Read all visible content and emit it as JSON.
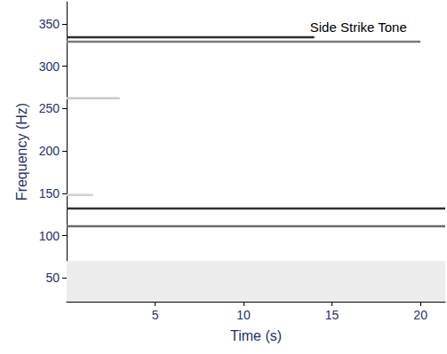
{
  "chart_data": {
    "type": "spectrogram",
    "title": "Side Strike Tone",
    "x_label": "Time (s)",
    "y_label": "Frequency (Hz)",
    "xlim": [
      0,
      21.4
    ],
    "xticks": [
      5,
      10,
      15,
      20
    ],
    "ylim": [
      22,
      376
    ],
    "yticks": [
      50,
      100,
      150,
      200,
      250,
      300,
      350
    ],
    "grid": false,
    "tones": [
      {
        "frequency": 334,
        "start": 0,
        "end": 14,
        "color": "#2a2a2a"
      },
      {
        "frequency": 329,
        "start": 0,
        "end": 20,
        "color": "#7a7a7a"
      },
      {
        "frequency": 262,
        "start": 0,
        "end": 3,
        "color": "#c8c8c8"
      },
      {
        "frequency": 148,
        "start": 0,
        "end": 1.5,
        "color": "#cfcfcf"
      },
      {
        "frequency": 132,
        "start": 0,
        "end": 21.4,
        "color": "#303030"
      },
      {
        "frequency": 111,
        "start": 0,
        "end": 21.4,
        "color": "#6a6a6a"
      }
    ],
    "bands": [
      {
        "from": 22,
        "to": 70,
        "color": "#ececec"
      }
    ]
  }
}
